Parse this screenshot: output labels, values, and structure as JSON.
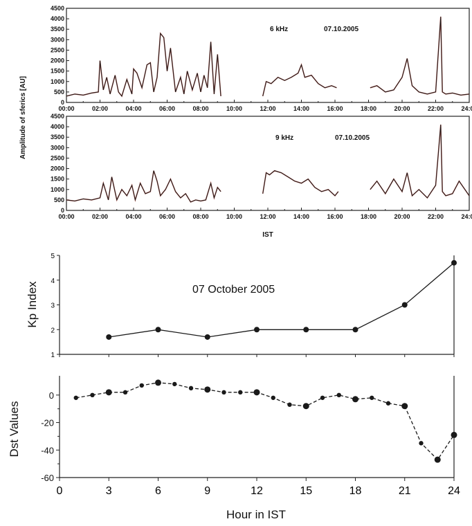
{
  "chart_data": [
    {
      "type": "line",
      "annotation": "6 kHz",
      "date": "07.10.2005",
      "ylabel": "Amplitude of sferics [AU]",
      "ylim": [
        0,
        4500
      ],
      "yticks": [
        "0",
        "500",
        "1000",
        "1500",
        "2000",
        "2500",
        "3000",
        "3500",
        "4000",
        "4500"
      ],
      "xlim": [
        0,
        24
      ],
      "xticks": [
        "00:00",
        "02:00",
        "04:00",
        "06:00",
        "08:00",
        "10:00",
        "12:00",
        "14:00",
        "16:00",
        "18:00",
        "20:00",
        "22:00",
        "24:00"
      ],
      "segments": [
        {
          "x": [
            0,
            0.5,
            1,
            1.5,
            1.9,
            2.0,
            2.2,
            2.4,
            2.6,
            2.9,
            3.1,
            3.3,
            3.6,
            3.9,
            4.0,
            4.2,
            4.5,
            4.8,
            5.0,
            5.2,
            5.4,
            5.6,
            5.8,
            6.0,
            6.2,
            6.5,
            6.8,
            7.0,
            7.2,
            7.5,
            7.8,
            8.0,
            8.2,
            8.4,
            8.6,
            8.8,
            9.0,
            9.2
          ],
          "y": [
            300,
            400,
            350,
            450,
            500,
            2000,
            600,
            1200,
            400,
            1300,
            500,
            300,
            1100,
            400,
            1600,
            1400,
            700,
            1800,
            1900,
            500,
            1200,
            3300,
            3100,
            1500,
            2600,
            500,
            1200,
            400,
            1500,
            600,
            1400,
            500,
            1300,
            700,
            2900,
            400,
            2300,
            300
          ]
        },
        {
          "x": [
            11.7,
            11.9,
            12.2,
            12.6,
            13.0,
            13.4,
            13.8,
            14.0,
            14.2,
            14.6,
            15.0,
            15.4,
            15.8,
            16.1
          ],
          "y": [
            300,
            1000,
            900,
            1200,
            1050,
            1200,
            1400,
            1800,
            1200,
            1300,
            900,
            700,
            800,
            700
          ]
        },
        {
          "x": [
            18.1,
            18.5,
            19.0,
            19.5,
            20.0,
            20.3,
            20.6,
            21.0,
            21.5,
            22.0,
            22.3,
            22.4,
            22.6,
            23.0,
            23.5,
            24.0
          ],
          "y": [
            700,
            800,
            500,
            600,
            1200,
            2100,
            800,
            500,
            400,
            500,
            4100,
            500,
            400,
            450,
            350,
            400
          ]
        }
      ]
    },
    {
      "type": "line",
      "annotation": "9 kHz",
      "date": "07.10.2005",
      "ylim": [
        0,
        4500
      ],
      "yticks": [
        "0",
        "500",
        "1000",
        "1500",
        "2000",
        "2500",
        "3000",
        "3500",
        "4000",
        "4500"
      ],
      "xlim": [
        0,
        24
      ],
      "xlabel": "IST",
      "xticks": [
        "00:00",
        "02:00",
        "04:00",
        "06:00",
        "08:00",
        "10:00",
        "12:00",
        "14:00",
        "16:00",
        "18:00",
        "20:00",
        "22:00",
        "24:00"
      ],
      "segments": [
        {
          "x": [
            0,
            0.5,
            1,
            1.5,
            2.0,
            2.2,
            2.5,
            2.7,
            3.0,
            3.3,
            3.6,
            3.9,
            4.1,
            4.4,
            4.7,
            5.0,
            5.2,
            5.4,
            5.6,
            5.9,
            6.2,
            6.5,
            6.8,
            7.1,
            7.4,
            7.7,
            8.0,
            8.3,
            8.6,
            8.8,
            9.0,
            9.2
          ],
          "y": [
            500,
            450,
            550,
            500,
            600,
            1300,
            500,
            1600,
            500,
            1000,
            700,
            1200,
            500,
            1300,
            800,
            900,
            1900,
            1400,
            700,
            1000,
            1500,
            900,
            600,
            800,
            400,
            500,
            450,
            500,
            1300,
            600,
            1100,
            900
          ]
        },
        {
          "x": [
            11.7,
            11.9,
            12.1,
            12.4,
            12.8,
            13.2,
            13.6,
            14.0,
            14.4,
            14.8,
            15.2,
            15.6,
            16.0,
            16.2
          ],
          "y": [
            800,
            1800,
            1700,
            1900,
            1800,
            1600,
            1400,
            1300,
            1500,
            1100,
            900,
            1000,
            700,
            900
          ]
        },
        {
          "x": [
            18.1,
            18.5,
            19.0,
            19.5,
            20.0,
            20.3,
            20.6,
            21.0,
            21.5,
            22.0,
            22.3,
            22.4,
            22.6,
            23.0,
            23.4,
            24.0
          ],
          "y": [
            1000,
            1400,
            800,
            1500,
            900,
            1800,
            700,
            1000,
            600,
            1200,
            4100,
            900,
            700,
            800,
            1400,
            700
          ]
        }
      ]
    },
    {
      "type": "line",
      "title": "07 October 2005",
      "ylabel": "Kp Index",
      "ylim": [
        1,
        5
      ],
      "yticks": [
        "1",
        "2",
        "3",
        "4",
        "5"
      ],
      "xlim": [
        0,
        24
      ],
      "x": [
        3,
        6,
        9,
        12,
        15,
        18,
        21,
        24
      ],
      "y": [
        1.7,
        2.0,
        1.7,
        2.0,
        2.0,
        2.0,
        3.0,
        4.7
      ]
    },
    {
      "type": "line",
      "ylabel": "Dst Values",
      "xlabel": "Hour in IST",
      "ylim": [
        -60,
        14
      ],
      "yticks": [
        "0",
        "-20",
        "-40",
        "-60"
      ],
      "xlim": [
        0,
        24
      ],
      "xticks": [
        "0",
        "3",
        "6",
        "9",
        "12",
        "15",
        "18",
        "21",
        "24"
      ],
      "x": [
        1,
        2,
        3,
        4,
        5,
        6,
        7,
        8,
        9,
        10,
        11,
        12,
        13,
        14,
        15,
        16,
        17,
        18,
        19,
        20,
        21,
        22,
        23,
        24
      ],
      "y": [
        -2,
        0,
        2,
        2,
        7,
        9,
        8,
        5,
        4,
        2,
        2,
        2,
        -2,
        -7,
        -8,
        -2,
        0,
        -3,
        -2,
        -6,
        -8,
        -35,
        -47,
        -29
      ]
    }
  ],
  "colors": {
    "trace": "#1a1a1a",
    "trace_overlay": "#b03a2e",
    "axis": "#222222"
  }
}
